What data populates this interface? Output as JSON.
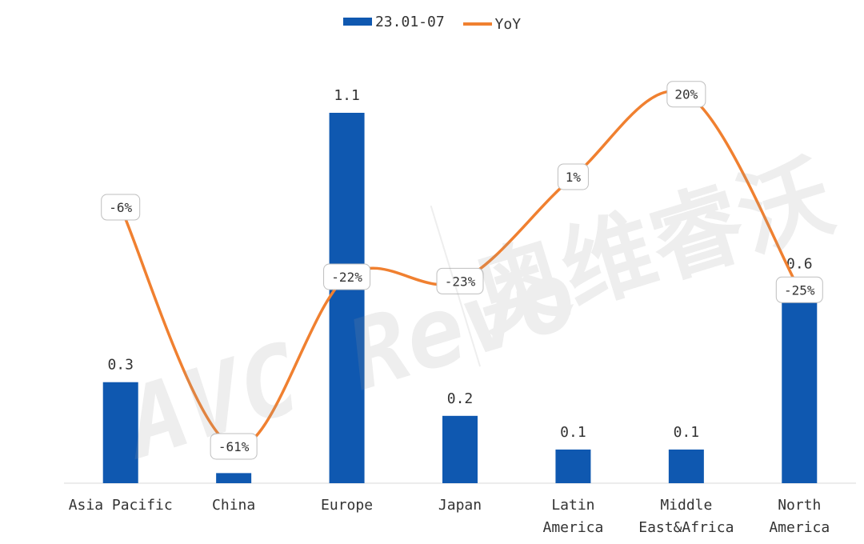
{
  "chart_data": {
    "type": "bar",
    "categories": [
      [
        "Asia Pacific"
      ],
      [
        "China"
      ],
      [
        "Europe"
      ],
      [
        "Japan"
      ],
      [
        "Latin",
        "America"
      ],
      [
        "Middle",
        "East&Africa"
      ],
      [
        "North",
        "America"
      ]
    ],
    "series": [
      {
        "name": "23.01-07",
        "kind": "bar",
        "color": "#0F58B0",
        "values": [
          0.3,
          0.03,
          1.1,
          0.2,
          0.1,
          0.1,
          0.6
        ],
        "labels": [
          "0.3",
          "",
          "1.1",
          "0.2",
          "0.1",
          "0.1",
          "0.6"
        ]
      },
      {
        "name": "YoY",
        "kind": "line",
        "color": "#F08030",
        "values": [
          -6,
          -61,
          -22,
          -23,
          1,
          20,
          -25
        ],
        "labels": [
          "-6%",
          "-61%",
          "-22%",
          "-23%",
          "1%",
          "20%",
          "-25%"
        ]
      }
    ],
    "legend_position": "top-center",
    "grid": false
  },
  "watermark": {
    "latin": "AVC Revo",
    "cjk": "奥维睿沃"
  }
}
